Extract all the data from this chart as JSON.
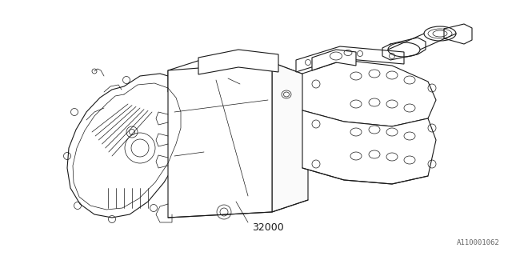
{
  "background_color": "#ffffff",
  "line_color": "#1a1a1a",
  "part_number": "32000",
  "diagram_id": "A110001062",
  "fig_width": 6.4,
  "fig_height": 3.2,
  "dpi": 100,
  "lw_main": 0.8,
  "lw_detail": 0.5,
  "lw_thin": 0.35
}
